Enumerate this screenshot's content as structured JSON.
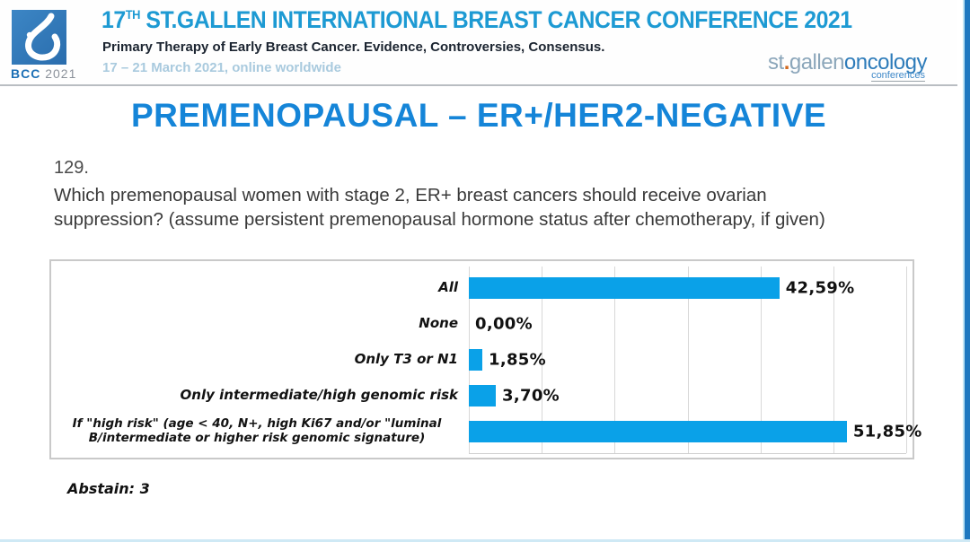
{
  "header": {
    "logo_caption_bcc": "BCC",
    "logo_caption_year": "2021",
    "title_num": "17",
    "title_sup": "TH",
    "title_rest": " ST.GALLEN INTERNATIONAL BREAST CANCER CONFERENCE 2021",
    "subtitle": "Primary Therapy of Early Breast Cancer. Evidence, Controversies, Consensus.",
    "date_line": "17 – 21 March 2021, online worldwide",
    "right_logo": {
      "st": "st",
      "dot": ".",
      "gallen": "gallen",
      "oncology": "oncology",
      "conferences": "conferences"
    }
  },
  "slide": {
    "title": "PREMENOPAUSAL – ER+/HER2-NEGATIVE",
    "question_number": "129.",
    "question_text": "Which premenopausal women with stage 2, ER+ breast cancers should receive ovarian suppression? (assume persistent premenopausal hormone status after chemotherapy, if given)",
    "abstain": "Abstain: 3"
  },
  "chart_data": {
    "type": "bar",
    "orientation": "horizontal",
    "title": "",
    "categories": [
      "All",
      "None",
      "Only T3 or N1",
      "Only intermediate/high genomic risk",
      "If \"high risk\" (age < 40, N+, high Ki67 and/or \"luminal B/intermediate or higher risk genomic signature)"
    ],
    "values": [
      42.59,
      0.0,
      1.85,
      3.7,
      51.85
    ],
    "value_labels": [
      "42,59%",
      "0,00%",
      "1,85%",
      "3,70%",
      "51,85%"
    ],
    "xlim": [
      0,
      60
    ],
    "gridline_step": 10,
    "grid": true,
    "legend": false,
    "bar_color": "#0aa1e8"
  },
  "colors": {
    "header_title_blue": "#1d9ad3",
    "slide_title_blue": "#1585d8",
    "bar_blue": "#0aa1e8",
    "logo_square_blue": "#3079ba",
    "date_light_blue": "#a9cade",
    "edge_strip_blue": "#1e78c0",
    "orange_dot": "#d2691e"
  }
}
